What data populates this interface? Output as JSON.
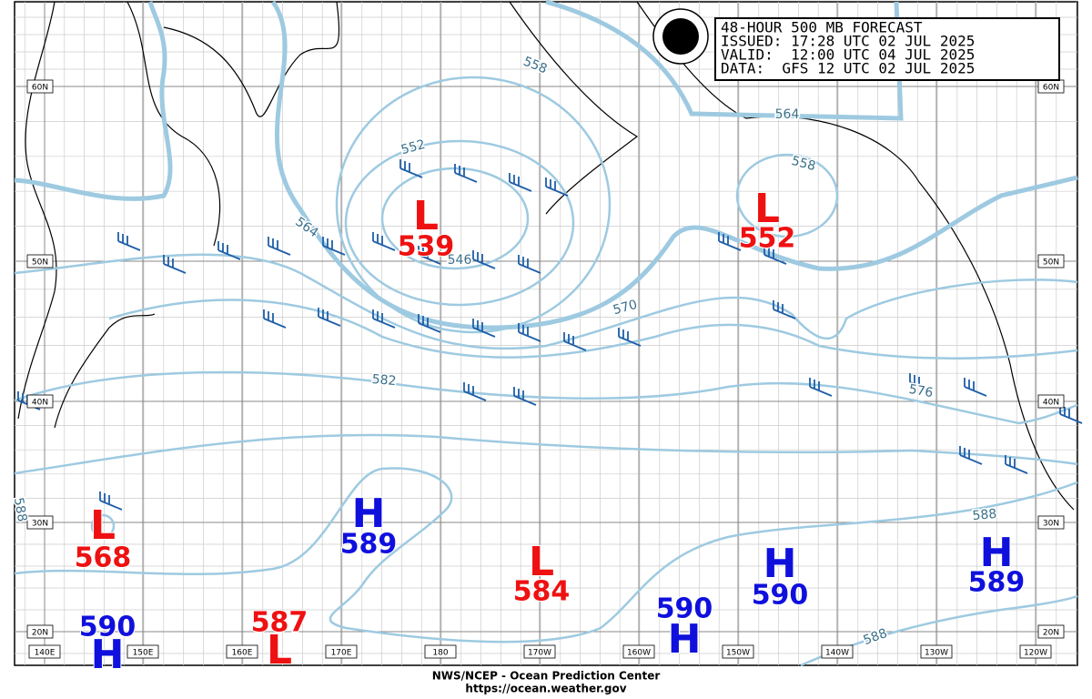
{
  "header": {
    "title": "48-HOUR 500 MB FORECAST",
    "issued": "ISSUED: 17:28 UTC 02 JUL 2025",
    "valid": "VALID:  12:00 UTC 04 JUL 2025",
    "data": "DATA:  GFS 12 UTC 02 JUL 2025"
  },
  "latitudes": [
    "60N",
    "50N",
    "40N",
    "30N",
    "20N"
  ],
  "longitudes": [
    "140E",
    "150E",
    "160E",
    "170E",
    "180",
    "170W",
    "160W",
    "150W",
    "140W",
    "130W",
    "120W"
  ],
  "centers": [
    {
      "type": "L",
      "value": 539
    },
    {
      "type": "L",
      "value": 552
    },
    {
      "type": "L",
      "value": 568
    },
    {
      "type": "L",
      "value": 584
    },
    {
      "type": "L",
      "value": 587
    },
    {
      "type": "H",
      "value": 589
    },
    {
      "type": "H",
      "value": 590
    },
    {
      "type": "H",
      "value": 589
    },
    {
      "type": "H",
      "value": 590
    },
    {
      "type": "H",
      "value": 590
    }
  ],
  "contour_labels": [
    558,
    552,
    564,
    558,
    564,
    570,
    582,
    588,
    588,
    576,
    546,
    588
  ],
  "footer": {
    "agency": "NWS/NCEP - Ocean Prediction Center",
    "url": "https://ocean.weather.gov"
  }
}
